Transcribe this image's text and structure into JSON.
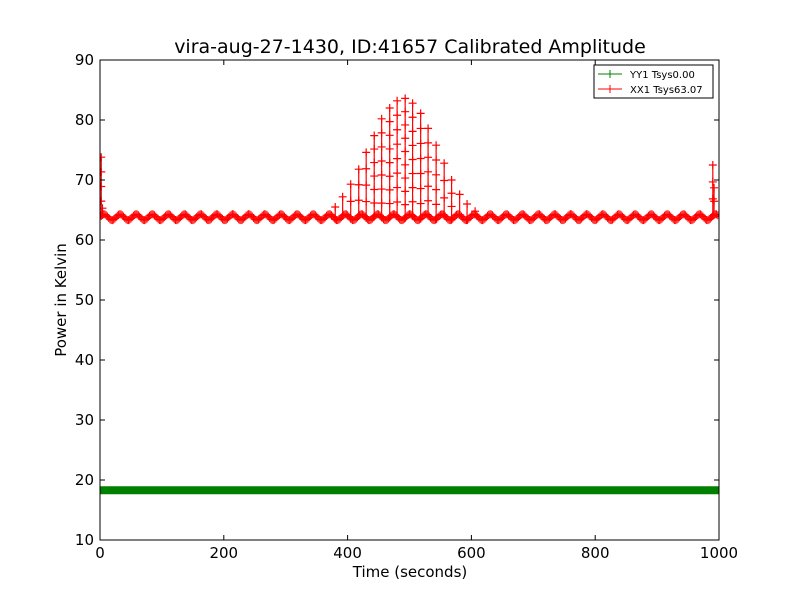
{
  "chart_data": {
    "type": "line",
    "title": "vira-aug-27-1430, ID:41657 Calibrated Amplitude",
    "xlabel": "Time (seconds)",
    "ylabel": "Power in Kelvin",
    "xlim": [
      0,
      1000
    ],
    "ylim": [
      10,
      90
    ],
    "xticks": [
      0,
      200,
      400,
      600,
      800,
      1000
    ],
    "yticks": [
      10,
      20,
      30,
      40,
      50,
      60,
      70,
      80,
      90
    ],
    "grid": false,
    "legend_placement": "top-right",
    "marker": "+",
    "series": [
      {
        "name": "YY1 Tsys0.00",
        "color": "#008000",
        "baseline": 18.3,
        "x_start": 0,
        "x_end": 1000,
        "x_step": 1
      },
      {
        "name": "XX1 Tsys63.07",
        "color": "#ff0000",
        "baseline": 63.8,
        "ripple_amplitude": 0.5,
        "ripple_period": 26,
        "x_start": 0,
        "x_end": 1000,
        "x_step": 2,
        "spikes": [
          {
            "x": 2,
            "y": 73.8
          },
          {
            "x": 4,
            "y": 65.3
          },
          {
            "x": 380,
            "y": 65.5
          },
          {
            "x": 392,
            "y": 67.2
          },
          {
            "x": 405,
            "y": 69.3
          },
          {
            "x": 418,
            "y": 71.8
          },
          {
            "x": 430,
            "y": 74.6
          },
          {
            "x": 443,
            "y": 77.4
          },
          {
            "x": 455,
            "y": 80.2
          },
          {
            "x": 468,
            "y": 82.0
          },
          {
            "x": 480,
            "y": 83.2
          },
          {
            "x": 493,
            "y": 83.6
          },
          {
            "x": 505,
            "y": 82.8
          },
          {
            "x": 518,
            "y": 81.1
          },
          {
            "x": 530,
            "y": 78.6
          },
          {
            "x": 543,
            "y": 75.8
          },
          {
            "x": 556,
            "y": 72.8
          },
          {
            "x": 568,
            "y": 70.0
          },
          {
            "x": 581,
            "y": 67.6
          },
          {
            "x": 593,
            "y": 66.0
          },
          {
            "x": 606,
            "y": 64.8
          },
          {
            "x": 990,
            "y": 72.5
          },
          {
            "x": 992,
            "y": 68.7
          }
        ]
      }
    ]
  }
}
